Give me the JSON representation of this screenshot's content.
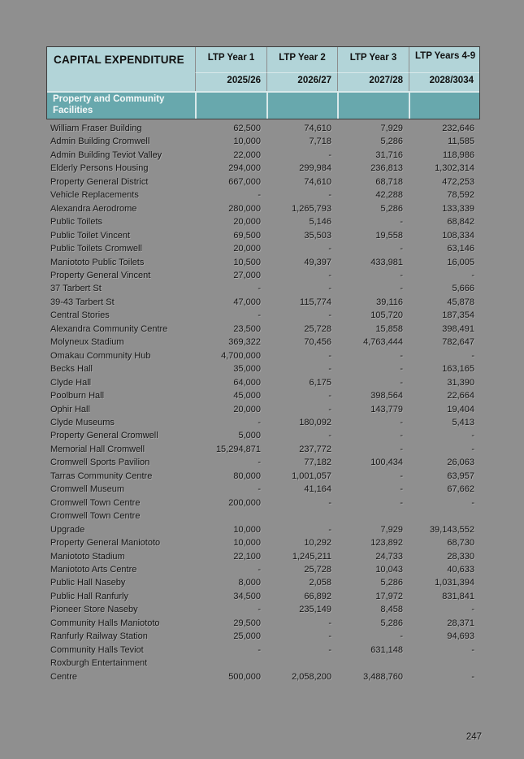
{
  "page": {
    "page_number": "247"
  },
  "colors": {
    "page_bg": "#8f8f8f",
    "header_bg": "#b2d4d8",
    "section_bg": "#68a8ad"
  },
  "table": {
    "title": "CAPITAL EXPENDITURE",
    "columns": [
      {
        "label": "LTP Year 1",
        "sublabel": "2025/26"
      },
      {
        "label": "LTP Year 2",
        "sublabel": "2026/27"
      },
      {
        "label": "LTP Year 3",
        "sublabel": "2027/28"
      },
      {
        "label": "LTP Years 4-9",
        "sublabel": "2028/3034"
      }
    ],
    "section": "Property and Community Facilities",
    "rows": [
      {
        "name": "William Fraser Building",
        "values": [
          "62,500",
          "74,610",
          "7,929",
          "232,646"
        ]
      },
      {
        "name": "Admin Building Cromwell",
        "values": [
          "10,000",
          "7,718",
          "5,286",
          "11,585"
        ]
      },
      {
        "name": "Admin Building Teviot Valley",
        "values": [
          "22,000",
          "-",
          "31,716",
          "118,986"
        ]
      },
      {
        "name": "Elderly Persons Housing",
        "values": [
          "294,000",
          "299,984",
          "236,813",
          "1,302,314"
        ]
      },
      {
        "name": "Property General District",
        "values": [
          "667,000",
          "74,610",
          "68,718",
          "472,253"
        ]
      },
      {
        "name": "Vehicle Replacements",
        "values": [
          "-",
          "-",
          "42,288",
          "78,592"
        ]
      },
      {
        "name": "Alexandra Aerodrome",
        "values": [
          "280,000",
          "1,265,793",
          "5,286",
          "133,339"
        ]
      },
      {
        "name": "Public Toilets",
        "values": [
          "20,000",
          "5,146",
          "-",
          "68,842"
        ]
      },
      {
        "name": "Public Toilet Vincent",
        "values": [
          "69,500",
          "35,503",
          "19,558",
          "108,334"
        ]
      },
      {
        "name": "Public Toilets Cromwell",
        "values": [
          "20,000",
          "-",
          "-",
          "63,146"
        ]
      },
      {
        "name": "Maniototo Public Toilets",
        "values": [
          "10,500",
          "49,397",
          "433,981",
          "16,005"
        ]
      },
      {
        "name": "Property General Vincent",
        "values": [
          "27,000",
          "-",
          "-",
          "-"
        ]
      },
      {
        "name": "37 Tarbert St",
        "values": [
          "-",
          "-",
          "-",
          "5,666"
        ]
      },
      {
        "name": "39-43 Tarbert St",
        "values": [
          "47,000",
          "115,774",
          "39,116",
          "45,878"
        ]
      },
      {
        "name": "Central Stories",
        "values": [
          "-",
          "-",
          "105,720",
          "187,354"
        ]
      },
      {
        "name": "Alexandra Community Centre",
        "values": [
          "23,500",
          "25,728",
          "15,858",
          "398,491"
        ]
      },
      {
        "name": "Molyneux Stadium",
        "values": [
          "369,322",
          "70,456",
          "4,763,444",
          "782,647"
        ]
      },
      {
        "name": "Omakau Community Hub",
        "values": [
          "4,700,000",
          "-",
          "-",
          "-"
        ]
      },
      {
        "name": "Becks Hall",
        "values": [
          "35,000",
          "-",
          "-",
          "163,165"
        ]
      },
      {
        "name": "Clyde Hall",
        "values": [
          "64,000",
          "6,175",
          "-",
          "31,390"
        ]
      },
      {
        "name": "Poolburn Hall",
        "values": [
          "45,000",
          "-",
          "398,564",
          "22,664"
        ]
      },
      {
        "name": "Ophir Hall",
        "values": [
          "20,000",
          "-",
          "143,779",
          "19,404"
        ]
      },
      {
        "name": "Clyde Museums",
        "values": [
          "-",
          "180,092",
          "-",
          "5,413"
        ]
      },
      {
        "name": "Property General Cromwell",
        "values": [
          "5,000",
          "-",
          "-",
          "-"
        ]
      },
      {
        "name": "Memorial Hall Cromwell",
        "values": [
          "15,294,871",
          "237,772",
          "-",
          "-"
        ]
      },
      {
        "name": "Cromwell Sports Pavilion",
        "values": [
          "-",
          "77,182",
          "100,434",
          "26,063"
        ]
      },
      {
        "name": "Tarras Community Centre",
        "values": [
          "80,000",
          "1,001,057",
          "-",
          "63,957"
        ]
      },
      {
        "name": "Cromwell Museum",
        "values": [
          "-",
          "41,164",
          "-",
          "67,662"
        ]
      },
      {
        "name": "Cromwell Town Centre",
        "values": [
          "200,000",
          "-",
          "-",
          "-"
        ]
      },
      {
        "name": "Cromwell Town Centre\nUpgrade",
        "values": [
          "10,000",
          "-",
          "7,929",
          "39,143,552"
        ]
      },
      {
        "name": "Property General Maniototo",
        "values": [
          "10,000",
          "10,292",
          "123,892",
          "68,730"
        ]
      },
      {
        "name": "Maniototo Stadium",
        "values": [
          "22,100",
          "1,245,211",
          "24,733",
          "28,330"
        ]
      },
      {
        "name": "Maniototo Arts Centre",
        "values": [
          "-",
          "25,728",
          "10,043",
          "40,633"
        ]
      },
      {
        "name": "Public Hall Naseby",
        "values": [
          "8,000",
          "2,058",
          "5,286",
          "1,031,394"
        ]
      },
      {
        "name": "Public Hall Ranfurly",
        "values": [
          "34,500",
          "66,892",
          "17,972",
          "831,841"
        ]
      },
      {
        "name": "Pioneer Store Naseby",
        "values": [
          "-",
          "235,149",
          "8,458",
          "-"
        ]
      },
      {
        "name": "Community Halls Maniototo",
        "values": [
          "29,500",
          "-",
          "5,286",
          "28,371"
        ]
      },
      {
        "name": "Ranfurly Railway Station",
        "values": [
          "25,000",
          "-",
          "-",
          "94,693"
        ]
      },
      {
        "name": "Community Halls Teviot",
        "values": [
          "-",
          "-",
          "631,148",
          "-"
        ]
      },
      {
        "name": "Roxburgh Entertainment\nCentre",
        "values": [
          "500,000",
          "2,058,200",
          "3,488,760",
          "-"
        ]
      }
    ]
  }
}
